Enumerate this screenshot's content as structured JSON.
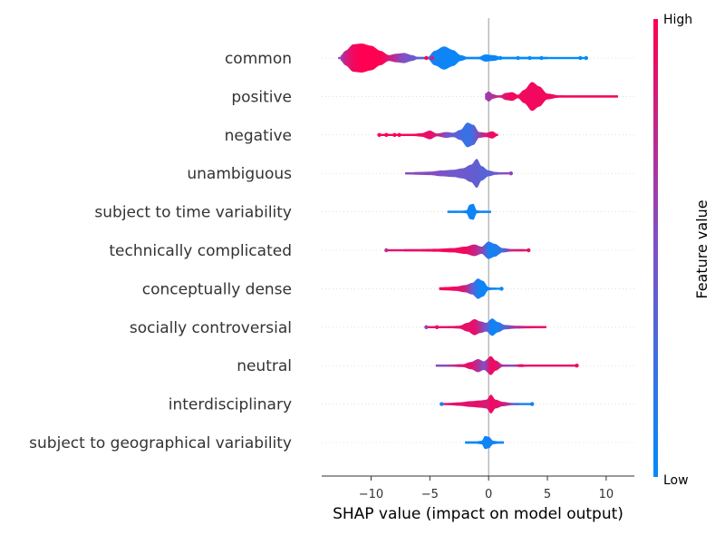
{
  "chart_data": {
    "type": "violin",
    "xlabel": "SHAP value (impact on model output)",
    "xlim": [
      -14.2,
      12.4
    ],
    "xticks": [
      -10,
      -5,
      0,
      5,
      10
    ],
    "xtick_labels": [
      "−10",
      "−5",
      "0",
      "5",
      "10"
    ],
    "colorbar": {
      "title": "Feature value",
      "high_label": "High",
      "low_label": "Low",
      "low_color": "#008bfb",
      "mid_color": "#7c52c8",
      "high_color": "#ff0052"
    },
    "features": [
      {
        "name": "common",
        "range": [
          -12.8,
          8.4
        ],
        "outliers": [
          {
            "x": -5.3,
            "c": 1.0
          },
          {
            "x": -4.8,
            "c": 0.8
          },
          {
            "x": 1.0,
            "c": 0.0
          },
          {
            "x": 2.5,
            "c": 0.0
          },
          {
            "x": 3.5,
            "c": 0.0
          },
          {
            "x": 4.5,
            "c": 0.0
          },
          {
            "x": 7.8,
            "c": 0.0
          },
          {
            "x": 8.3,
            "c": 0.0
          }
        ],
        "segments": [
          {
            "x": -12.6,
            "w": 0.15,
            "c": 0.55
          },
          {
            "x": -12.2,
            "w": 0.5,
            "c": 0.8
          },
          {
            "x": -11.5,
            "w": 0.95,
            "c": 0.95
          },
          {
            "x": -10.8,
            "w": 1.0,
            "c": 1.0
          },
          {
            "x": -10.0,
            "w": 0.85,
            "c": 1.0
          },
          {
            "x": -9.2,
            "w": 0.5,
            "c": 1.0
          },
          {
            "x": -8.5,
            "w": 0.2,
            "c": 0.85
          },
          {
            "x": -7.8,
            "w": 0.3,
            "c": 0.65
          },
          {
            "x": -7.2,
            "w": 0.35,
            "c": 0.5
          },
          {
            "x": -6.5,
            "w": 0.2,
            "c": 0.45
          },
          {
            "x": -6.0,
            "w": 0.07,
            "c": 0.4
          },
          {
            "x": -5.2,
            "w": 0.05,
            "c": 0.3
          },
          {
            "x": -4.6,
            "w": 0.5,
            "c": 0.08
          },
          {
            "x": -3.8,
            "w": 0.8,
            "c": 0.05
          },
          {
            "x": -3.0,
            "w": 0.55,
            "c": 0.05
          },
          {
            "x": -2.4,
            "w": 0.2,
            "c": 0.05
          },
          {
            "x": -1.6,
            "w": 0.03,
            "c": 0.05
          },
          {
            "x": -0.8,
            "w": 0.08,
            "c": 0.05
          },
          {
            "x": -0.3,
            "w": 0.25,
            "c": 0.05
          },
          {
            "x": 0.4,
            "w": 0.2,
            "c": 0.05
          },
          {
            "x": 1.2,
            "w": 0.05,
            "c": 0.0
          },
          {
            "x": 3.0,
            "w": 0.04,
            "c": 0.0
          },
          {
            "x": 5.0,
            "w": 0.03,
            "c": 0.0
          }
        ]
      },
      {
        "name": "positive",
        "range": [
          -0.3,
          11.0
        ],
        "outliers": [],
        "segments": [
          {
            "x": -0.3,
            "w": 0.2,
            "c": 0.6
          },
          {
            "x": 0.0,
            "w": 0.35,
            "c": 0.65
          },
          {
            "x": 0.4,
            "w": 0.15,
            "c": 0.7
          },
          {
            "x": 0.9,
            "w": 0.04,
            "c": 0.8
          },
          {
            "x": 1.5,
            "w": 0.25,
            "c": 0.9
          },
          {
            "x": 2.0,
            "w": 0.3,
            "c": 0.95
          },
          {
            "x": 2.5,
            "w": 0.12,
            "c": 0.95
          },
          {
            "x": 3.0,
            "w": 0.45,
            "c": 0.95
          },
          {
            "x": 3.7,
            "w": 1.0,
            "c": 0.95
          },
          {
            "x": 4.3,
            "w": 0.7,
            "c": 0.95
          },
          {
            "x": 5.0,
            "w": 0.2,
            "c": 0.95
          },
          {
            "x": 6.0,
            "w": 0.08,
            "c": 0.95
          },
          {
            "x": 7.5,
            "w": 0.06,
            "c": 0.95
          },
          {
            "x": 9.0,
            "w": 0.06,
            "c": 0.95
          },
          {
            "x": 10.5,
            "w": 0.05,
            "c": 0.95
          },
          {
            "x": 11.0,
            "w": 0.03,
            "c": 0.95
          }
        ]
      },
      {
        "name": "negative",
        "range": [
          -9.4,
          0.8
        ],
        "outliers": [
          {
            "x": -9.3,
            "c": 1.0
          },
          {
            "x": -8.7,
            "c": 1.0
          },
          {
            "x": -8.0,
            "c": 1.0
          },
          {
            "x": -7.6,
            "c": 1.0
          }
        ],
        "segments": [
          {
            "x": -7.2,
            "w": 0.05,
            "c": 0.95
          },
          {
            "x": -6.5,
            "w": 0.07,
            "c": 0.95
          },
          {
            "x": -5.7,
            "w": 0.12,
            "c": 0.95
          },
          {
            "x": -5.0,
            "w": 0.3,
            "c": 0.9
          },
          {
            "x": -4.4,
            "w": 0.1,
            "c": 0.85
          },
          {
            "x": -3.6,
            "w": 0.2,
            "c": 0.5
          },
          {
            "x": -3.0,
            "w": 0.15,
            "c": 0.4
          },
          {
            "x": -2.4,
            "w": 0.35,
            "c": 0.3
          },
          {
            "x": -1.8,
            "w": 0.85,
            "c": 0.2
          },
          {
            "x": -1.3,
            "w": 0.7,
            "c": 0.3
          },
          {
            "x": -0.8,
            "w": 0.2,
            "c": 0.6
          },
          {
            "x": -0.2,
            "w": 0.15,
            "c": 0.85
          },
          {
            "x": 0.3,
            "w": 0.25,
            "c": 0.95
          },
          {
            "x": 0.8,
            "w": 0.05,
            "c": 0.95
          }
        ]
      },
      {
        "name": "unambiguous",
        "range": [
          -7.1,
          1.9
        ],
        "outliers": [
          {
            "x": 1.9,
            "c": 0.6
          }
        ],
        "segments": [
          {
            "x": -7.0,
            "w": 0.05,
            "c": 0.55
          },
          {
            "x": -6.0,
            "w": 0.1,
            "c": 0.55
          },
          {
            "x": -5.0,
            "w": 0.12,
            "c": 0.55
          },
          {
            "x": -4.0,
            "w": 0.2,
            "c": 0.5
          },
          {
            "x": -3.0,
            "w": 0.25,
            "c": 0.45
          },
          {
            "x": -2.2,
            "w": 0.35,
            "c": 0.45
          },
          {
            "x": -1.5,
            "w": 0.6,
            "c": 0.4
          },
          {
            "x": -1.0,
            "w": 1.0,
            "c": 0.4
          },
          {
            "x": -0.6,
            "w": 0.5,
            "c": 0.35
          },
          {
            "x": 0.0,
            "w": 0.2,
            "c": 0.35
          },
          {
            "x": 0.6,
            "w": 0.1,
            "c": 0.45
          },
          {
            "x": 1.2,
            "w": 0.05,
            "c": 0.55
          }
        ]
      },
      {
        "name": "subject to time variability",
        "range": [
          -3.5,
          0.2
        ],
        "outliers": [],
        "segments": [
          {
            "x": -3.5,
            "w": 0.04,
            "c": 0.05
          },
          {
            "x": -2.5,
            "w": 0.05,
            "c": 0.05
          },
          {
            "x": -1.9,
            "w": 0.1,
            "c": 0.05
          },
          {
            "x": -1.6,
            "w": 0.5,
            "c": 0.05
          },
          {
            "x": -1.3,
            "w": 0.55,
            "c": 0.05
          },
          {
            "x": -1.0,
            "w": 0.1,
            "c": 0.05
          },
          {
            "x": -0.5,
            "w": 0.05,
            "c": 0.05
          },
          {
            "x": 0.2,
            "w": 0.03,
            "c": 0.05
          }
        ]
      },
      {
        "name": "technically complicated",
        "range": [
          -8.7,
          3.4
        ],
        "outliers": [
          {
            "x": -8.7,
            "c": 0.7
          },
          {
            "x": 3.4,
            "c": 0.9
          }
        ],
        "segments": [
          {
            "x": -7.2,
            "w": 0.05,
            "c": 0.9
          },
          {
            "x": -6.0,
            "w": 0.08,
            "c": 0.9
          },
          {
            "x": -4.5,
            "w": 0.1,
            "c": 0.95
          },
          {
            "x": -3.0,
            "w": 0.15,
            "c": 0.95
          },
          {
            "x": -2.0,
            "w": 0.25,
            "c": 0.95
          },
          {
            "x": -1.2,
            "w": 0.4,
            "c": 0.8
          },
          {
            "x": -0.6,
            "w": 0.25,
            "c": 0.6
          },
          {
            "x": 0.0,
            "w": 0.6,
            "c": 0.1
          },
          {
            "x": 0.5,
            "w": 0.45,
            "c": 0.1
          },
          {
            "x": 1.2,
            "w": 0.15,
            "c": 0.25
          },
          {
            "x": 2.0,
            "w": 0.08,
            "c": 0.8
          },
          {
            "x": 3.0,
            "w": 0.04,
            "c": 0.9
          }
        ]
      },
      {
        "name": "conceptually dense",
        "range": [
          -4.2,
          1.1
        ],
        "outliers": [
          {
            "x": 1.1,
            "c": 0.0
          }
        ],
        "segments": [
          {
            "x": -4.2,
            "w": 0.1,
            "c": 0.95
          },
          {
            "x": -3.5,
            "w": 0.12,
            "c": 0.95
          },
          {
            "x": -2.8,
            "w": 0.15,
            "c": 0.95
          },
          {
            "x": -2.0,
            "w": 0.25,
            "c": 0.8
          },
          {
            "x": -1.4,
            "w": 0.4,
            "c": 0.4
          },
          {
            "x": -0.9,
            "w": 0.7,
            "c": 0.1
          },
          {
            "x": -0.5,
            "w": 0.55,
            "c": 0.05
          },
          {
            "x": 0.0,
            "w": 0.1,
            "c": 0.05
          },
          {
            "x": 0.6,
            "w": 0.05,
            "c": 0.05
          }
        ]
      },
      {
        "name": "socially controversial",
        "range": [
          -5.3,
          4.9
        ],
        "outliers": [
          {
            "x": -5.3,
            "c": 0.6
          },
          {
            "x": -4.4,
            "c": 0.9
          }
        ],
        "segments": [
          {
            "x": -3.5,
            "w": 0.06,
            "c": 0.9
          },
          {
            "x": -2.5,
            "w": 0.1,
            "c": 0.9
          },
          {
            "x": -1.8,
            "w": 0.3,
            "c": 0.9
          },
          {
            "x": -1.2,
            "w": 0.55,
            "c": 0.9
          },
          {
            "x": -0.7,
            "w": 0.4,
            "c": 0.7
          },
          {
            "x": -0.2,
            "w": 0.3,
            "c": 0.4
          },
          {
            "x": 0.3,
            "w": 0.6,
            "c": 0.05
          },
          {
            "x": 0.8,
            "w": 0.35,
            "c": 0.1
          },
          {
            "x": 1.4,
            "w": 0.15,
            "c": 0.35
          },
          {
            "x": 2.3,
            "w": 0.1,
            "c": 0.7
          },
          {
            "x": 3.5,
            "w": 0.08,
            "c": 0.9
          },
          {
            "x": 4.5,
            "w": 0.07,
            "c": 0.95
          },
          {
            "x": 4.9,
            "w": 0.04,
            "c": 0.95
          }
        ]
      },
      {
        "name": "neutral",
        "range": [
          -4.5,
          7.6
        ],
        "outliers": [
          {
            "x": 7.5,
            "c": 0.95
          }
        ],
        "segments": [
          {
            "x": -4.4,
            "w": 0.06,
            "c": 0.6
          },
          {
            "x": -3.9,
            "w": 0.05,
            "c": 0.5
          },
          {
            "x": -2.2,
            "w": 0.1,
            "c": 0.9
          },
          {
            "x": -1.5,
            "w": 0.25,
            "c": 0.9
          },
          {
            "x": -0.9,
            "w": 0.45,
            "c": 0.7
          },
          {
            "x": -0.4,
            "w": 0.3,
            "c": 0.5
          },
          {
            "x": 0.2,
            "w": 0.65,
            "c": 0.95
          },
          {
            "x": 0.6,
            "w": 0.35,
            "c": 0.9
          },
          {
            "x": 1.2,
            "w": 0.08,
            "c": 0.7
          },
          {
            "x": 2.0,
            "w": 0.06,
            "c": 0.5
          },
          {
            "x": 2.8,
            "w": 0.1,
            "c": 0.95
          },
          {
            "x": 3.3,
            "w": 0.05,
            "c": 0.9
          }
        ]
      },
      {
        "name": "interdisciplinary",
        "range": [
          -4.0,
          3.7
        ],
        "outliers": [
          {
            "x": -4.0,
            "c": 0.1
          },
          {
            "x": 3.7,
            "c": 0.05
          }
        ],
        "segments": [
          {
            "x": -3.5,
            "w": 0.07,
            "c": 0.9
          },
          {
            "x": -2.5,
            "w": 0.12,
            "c": 0.9
          },
          {
            "x": -1.5,
            "w": 0.2,
            "c": 0.9
          },
          {
            "x": -0.7,
            "w": 0.25,
            "c": 0.9
          },
          {
            "x": -0.2,
            "w": 0.3,
            "c": 0.8
          },
          {
            "x": 0.2,
            "w": 0.65,
            "c": 0.95
          },
          {
            "x": 0.6,
            "w": 0.3,
            "c": 0.9
          },
          {
            "x": 1.2,
            "w": 0.15,
            "c": 0.85
          },
          {
            "x": 2.0,
            "w": 0.08,
            "c": 0.5
          },
          {
            "x": 2.6,
            "w": 0.04,
            "c": 0.1
          }
        ]
      },
      {
        "name": "subject to geographical variability",
        "range": [
          -2.0,
          1.3
        ],
        "outliers": [],
        "segments": [
          {
            "x": -2.0,
            "w": 0.04,
            "c": 0.05
          },
          {
            "x": -1.3,
            "w": 0.05,
            "c": 0.05
          },
          {
            "x": -0.6,
            "w": 0.12,
            "c": 0.05
          },
          {
            "x": -0.3,
            "w": 0.45,
            "c": 0.05
          },
          {
            "x": 0.0,
            "w": 0.4,
            "c": 0.1
          },
          {
            "x": 0.4,
            "w": 0.12,
            "c": 0.05
          },
          {
            "x": 0.9,
            "w": 0.07,
            "c": 0.05
          },
          {
            "x": 1.3,
            "w": 0.04,
            "c": 0.05
          }
        ]
      }
    ]
  }
}
